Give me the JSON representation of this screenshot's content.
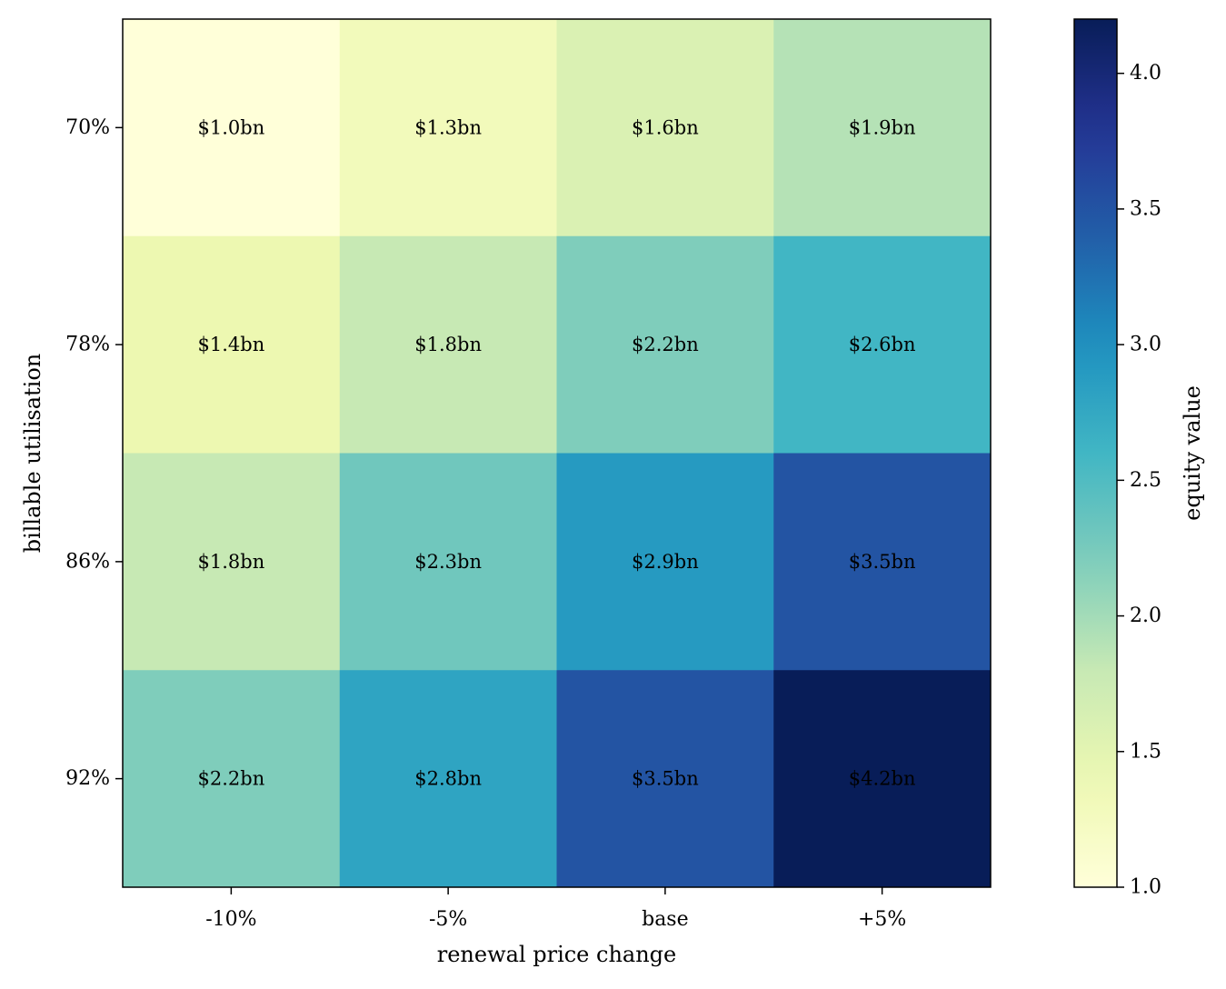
{
  "chart_data": {
    "type": "heatmap",
    "xlabel": "renewal price change",
    "ylabel": "billable utilisation",
    "x_categories": [
      "-10%",
      "-5%",
      "base",
      "+5%"
    ],
    "y_categories": [
      "70%",
      "78%",
      "86%",
      "92%"
    ],
    "values": [
      [
        1.0,
        1.3,
        1.6,
        1.9
      ],
      [
        1.4,
        1.8,
        2.2,
        2.6
      ],
      [
        1.8,
        2.3,
        2.9,
        3.5
      ],
      [
        2.2,
        2.8,
        3.5,
        4.2
      ]
    ],
    "cell_labels": [
      [
        "$1.0bn",
        "$1.3bn",
        "$1.6bn",
        "$1.9bn"
      ],
      [
        "$1.4bn",
        "$1.8bn",
        "$2.2bn",
        "$2.6bn"
      ],
      [
        "$1.8bn",
        "$2.3bn",
        "$2.9bn",
        "$3.5bn"
      ],
      [
        "$2.2bn",
        "$2.8bn",
        "$3.5bn",
        "$4.2bn"
      ]
    ],
    "colorbar": {
      "label": "equity value",
      "range": [
        1.0,
        4.2
      ],
      "ticks": [
        1.0,
        1.5,
        2.0,
        2.5,
        3.0,
        3.5,
        4.0
      ],
      "tick_labels": [
        "1.0",
        "1.5",
        "2.0",
        "2.5",
        "3.0",
        "3.5",
        "4.0"
      ],
      "colormap": "YlGnBu"
    }
  }
}
